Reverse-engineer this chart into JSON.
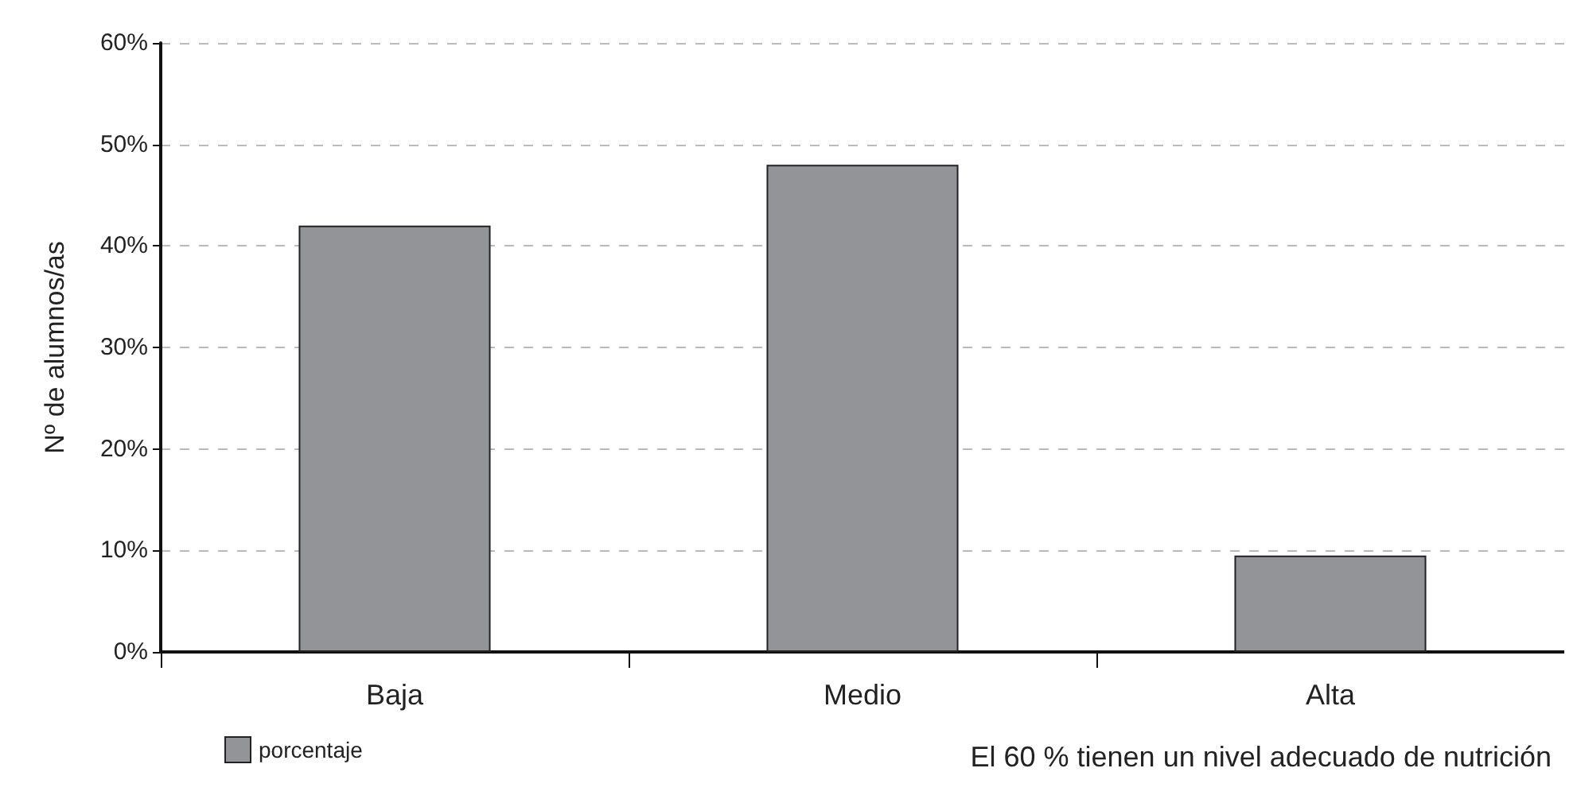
{
  "chart_data": {
    "type": "bar",
    "ylabel": "Nº de alumnos/as",
    "categories": [
      "Baja",
      "Medio",
      "Alta"
    ],
    "series": [
      {
        "name": "porcentaje",
        "color": "#939498",
        "values": [
          42,
          48,
          9.5
        ]
      }
    ],
    "ylim": [
      0,
      60
    ],
    "yticks": [
      {
        "value": 0,
        "label": "0%"
      },
      {
        "value": 10,
        "label": "10%"
      },
      {
        "value": 20,
        "label": "20%"
      },
      {
        "value": 30,
        "label": "30%"
      },
      {
        "value": 40,
        "label": "40%"
      },
      {
        "value": 50,
        "label": "50%"
      },
      {
        "value": 60,
        "label": "60%"
      }
    ],
    "grid": "y",
    "legend": "bottom left",
    "annotations": [
      "El 60 % tienen un nivel adecuado de nutrición"
    ]
  }
}
